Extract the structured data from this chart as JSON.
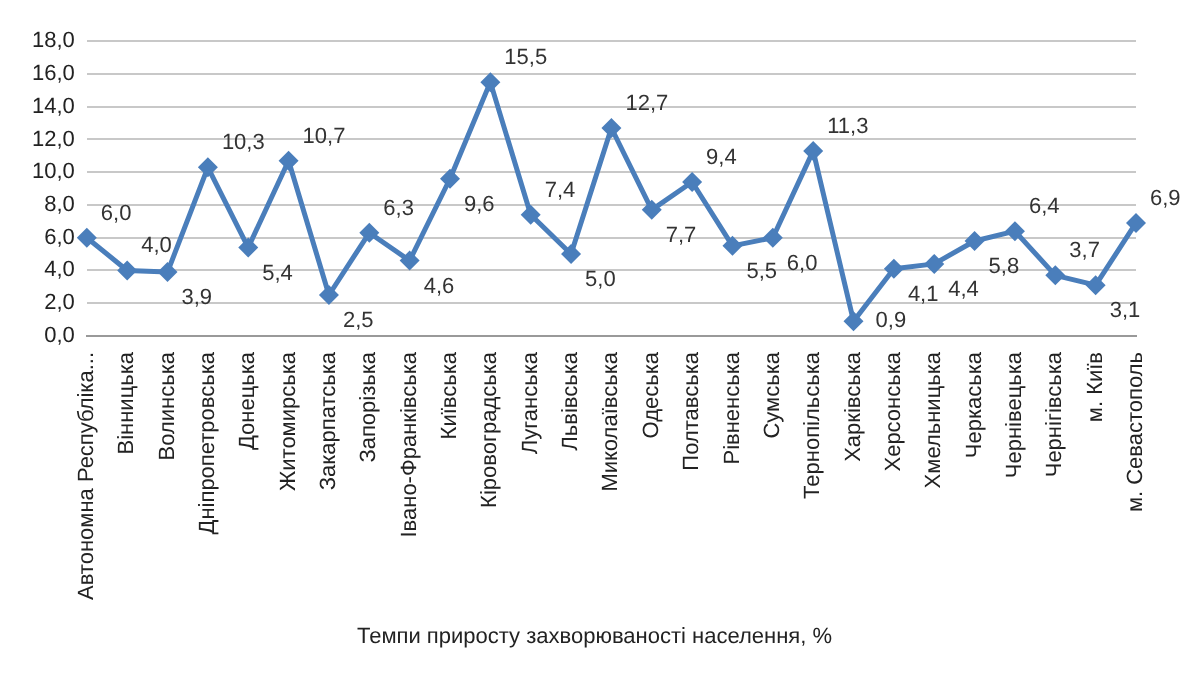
{
  "chart_data": {
    "type": "line",
    "categories": [
      "Автономна Республіка...",
      "Вінницька",
      "Волинська",
      "Дніпропетровська",
      "Донецька",
      "Житомирська",
      "Закарпатська",
      "Запорізька",
      "Івано-Франківська",
      "Київська",
      "Кіровоградська",
      "Луганська",
      "Львівська",
      "Миколаївська",
      "Одеська",
      "Полтавська",
      "Рівненська",
      "Сумська",
      "Тернопільська",
      "Харківська",
      "Херсонська",
      "Хмельницька",
      "Черкаська",
      "Чернівецька",
      "Чернігівська",
      "м. Київ",
      "м. Севастополь"
    ],
    "series": [
      {
        "name": "Темпи приросту захворюваності населення, %",
        "color": "#4a7ebb",
        "values": [
          6.0,
          4.0,
          3.9,
          10.3,
          5.4,
          10.7,
          2.5,
          6.3,
          4.6,
          9.6,
          15.5,
          7.4,
          5.0,
          12.7,
          7.7,
          9.4,
          5.5,
          6.0,
          11.3,
          0.9,
          4.1,
          4.4,
          5.8,
          6.4,
          3.7,
          3.1,
          6.9
        ],
        "value_labels": [
          "6,0",
          "4,0",
          "3,9",
          "10,3",
          "5,4",
          "10,7",
          "2,5",
          "6,3",
          "4,6",
          "9,6",
          "15,5",
          "7,4",
          "5,0",
          "12,7",
          "7,7",
          "9,4",
          "5,5",
          "6,0",
          "11,3",
          "0,9",
          "4,1",
          "4,4",
          "5,8",
          "6,4",
          "3,7",
          "3,1",
          "6,9"
        ]
      }
    ],
    "ylim": [
      0,
      18
    ],
    "yticks": [
      {
        "value": 0,
        "label": "0,0"
      },
      {
        "value": 2,
        "label": "2,0"
      },
      {
        "value": 4,
        "label": "4,0"
      },
      {
        "value": 6,
        "label": "6,0"
      },
      {
        "value": 8,
        "label": "8,0"
      },
      {
        "value": 10,
        "label": "10,0"
      },
      {
        "value": 12,
        "label": "12,0"
      },
      {
        "value": 14,
        "label": "14,0"
      },
      {
        "value": 16,
        "label": "16,0"
      },
      {
        "value": 18,
        "label": "18,0"
      }
    ],
    "grid": "y",
    "legend": "bottom",
    "marker": "diamond",
    "line_style": "solid"
  }
}
